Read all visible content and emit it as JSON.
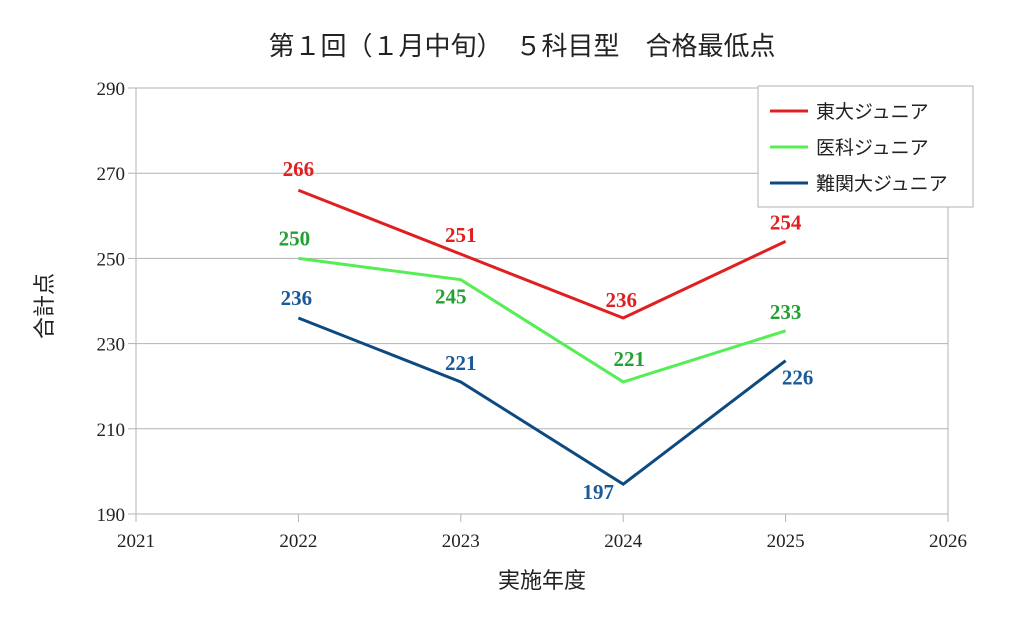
{
  "chart_data": {
    "type": "line",
    "title": "第１回（１月中旬）　５科目型　合格最低点",
    "xlabel": "実施年度",
    "ylabel": "合計点",
    "xlim": [
      2021,
      2026
    ],
    "ylim": [
      190,
      290
    ],
    "x_ticks": [
      2021,
      2022,
      2023,
      2024,
      2025,
      2026
    ],
    "y_ticks": [
      190,
      210,
      230,
      250,
      270,
      290
    ],
    "grid": true,
    "legend_position": "top-right",
    "x": [
      2022,
      2023,
      2024,
      2025
    ],
    "series": [
      {
        "name": "東大ジュニア",
        "color": "#e02020",
        "label_color": "#e02020",
        "values": [
          266,
          251,
          236,
          254
        ]
      },
      {
        "name": "医科ジュニア",
        "color": "#55ee55",
        "label_color": "#22a032",
        "values": [
          250,
          245,
          221,
          233
        ]
      },
      {
        "name": "難関大ジュニア",
        "color": "#0d4a80",
        "label_color": "#1a5a96",
        "values": [
          236,
          221,
          197,
          226
        ]
      }
    ]
  }
}
